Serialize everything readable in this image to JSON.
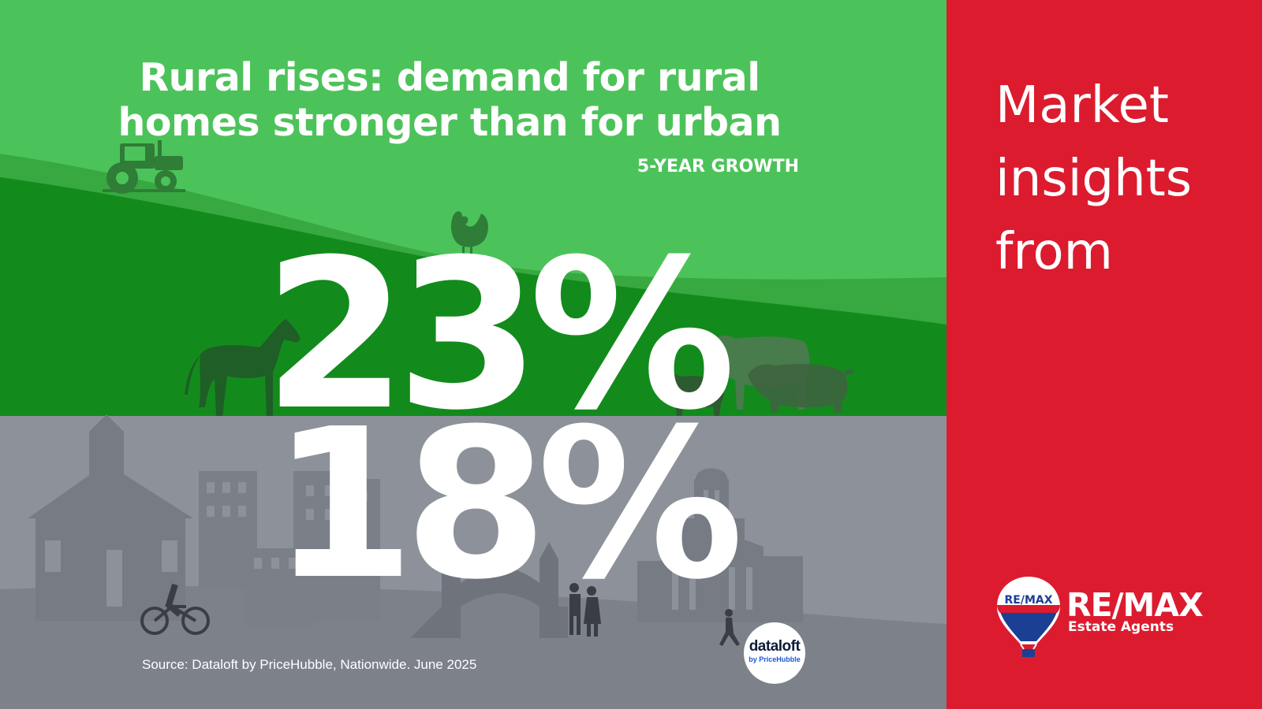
{
  "headline": {
    "line1": "Rural rises: demand for rural",
    "line2": "homes stronger than for urban"
  },
  "subtitle": "5-YEAR GROWTH",
  "rural_growth": "23%",
  "urban_growth": "18%",
  "source": "Source: Dataloft by PriceHubble, Nationwide. June 2025",
  "dataloft_logo": {
    "name": "dataloft",
    "sub": "by PriceHubble"
  },
  "sidebar": {
    "heading": [
      "Market",
      "insights",
      "from"
    ],
    "brand": "RE/MAX",
    "brand_sub": "Estate Agents",
    "balloon_text": "RE/MAX"
  },
  "colors": {
    "rural_light": "#4cc35a",
    "rural_mid": "#37a940",
    "rural_dark": "#128b1c",
    "urban": "#8d929a",
    "sidebar": "#dc1b2f",
    "balloon_blue": "#1b3f94"
  },
  "icons": [
    "tractor-icon",
    "rooster-icon",
    "horse-icon",
    "cow-icon",
    "calf-icon",
    "pig-icon",
    "church-icon",
    "tower-blocks-icon",
    "bridge-gate-icon",
    "civic-hall-icon",
    "cyclist-icon",
    "couple-icon",
    "runner-icon",
    "balloon-icon"
  ]
}
